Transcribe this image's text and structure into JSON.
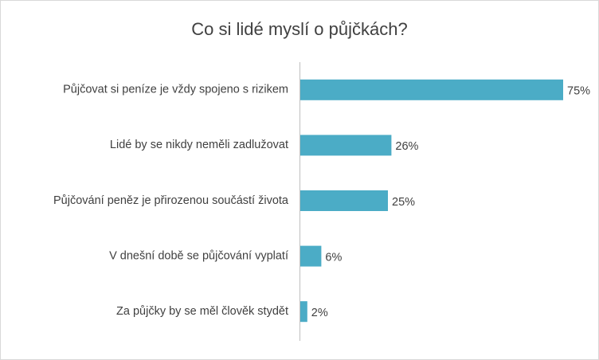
{
  "chart_data": {
    "type": "bar",
    "orientation": "horizontal",
    "title": "Co si lidé myslí o půjčkách?",
    "categories": [
      "Půjčovat si peníze je vždy spojeno s rizikem",
      "Lidé by se nikdy neměli zadlužovat",
      "Půjčování peněz je přirozenou součástí života",
      "V dnešní době se půjčování vyplatí",
      "Za půjčky by se měl člověk stydět"
    ],
    "values": [
      75,
      26,
      25,
      6,
      2
    ],
    "value_labels": [
      "75%",
      "26%",
      "25%",
      "6%",
      "2%"
    ],
    "color": "#4bacc6"
  }
}
